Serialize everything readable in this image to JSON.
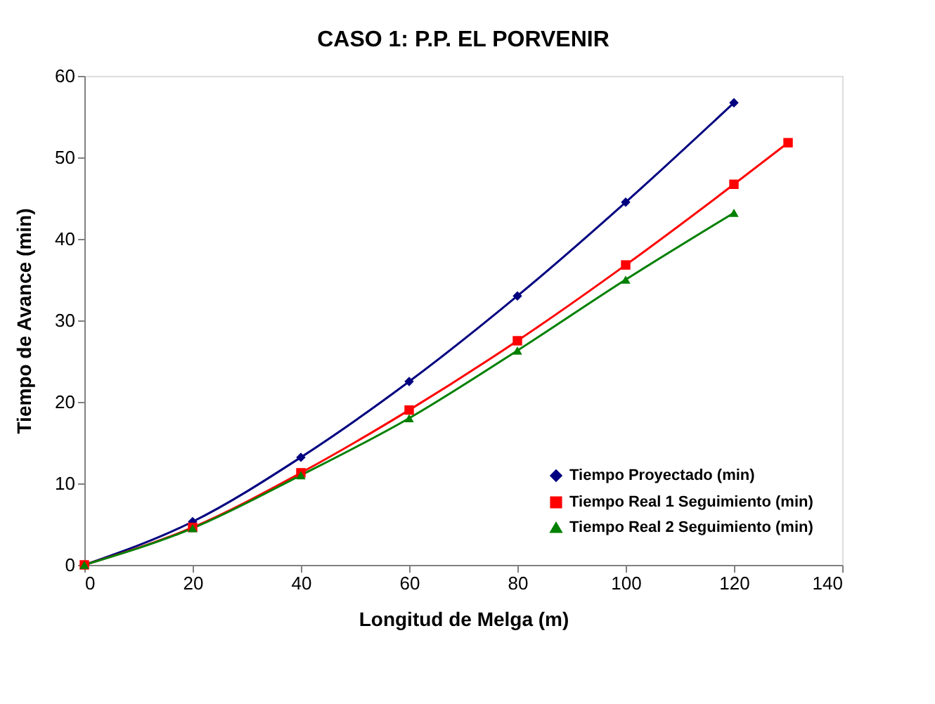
{
  "chart_data": {
    "type": "line",
    "title": "CASO 1: P.P. EL PORVENIR",
    "xlabel": "Longitud de Melga (m)",
    "ylabel": "Tiempo de Avance (min)",
    "series": [
      {
        "name": "Tiempo Proyectado (min)",
        "color": "#000080",
        "marker": "diamond",
        "x": [
          0,
          20,
          40,
          60,
          80,
          100,
          120
        ],
        "values": [
          0,
          5.3,
          13.2,
          22.5,
          33.0,
          44.5,
          56.7
        ]
      },
      {
        "name": "Tiempo Real 1 Seguimiento (min)",
        "color": "#ff0000",
        "marker": "square",
        "x": [
          0,
          20,
          40,
          60,
          80,
          100,
          120,
          130
        ],
        "values": [
          0,
          4.6,
          11.3,
          19.0,
          27.5,
          36.8,
          46.7,
          51.8
        ]
      },
      {
        "name": "Tiempo Real 2 Seguimiento (min)",
        "color": "#008000",
        "marker": "triangle",
        "x": [
          0,
          20,
          40,
          60,
          80,
          100,
          120
        ],
        "values": [
          0,
          4.5,
          11.0,
          18.0,
          26.3,
          35.0,
          43.2
        ]
      }
    ],
    "xlim": [
      0,
      140
    ],
    "xticks": [
      0,
      20,
      40,
      60,
      80,
      100,
      120,
      140
    ],
    "ylim": [
      0,
      60
    ],
    "yticks": [
      0,
      10,
      20,
      30,
      40,
      50,
      60
    ],
    "grid": false,
    "legend": "bottom right",
    "line_style": "solid"
  }
}
